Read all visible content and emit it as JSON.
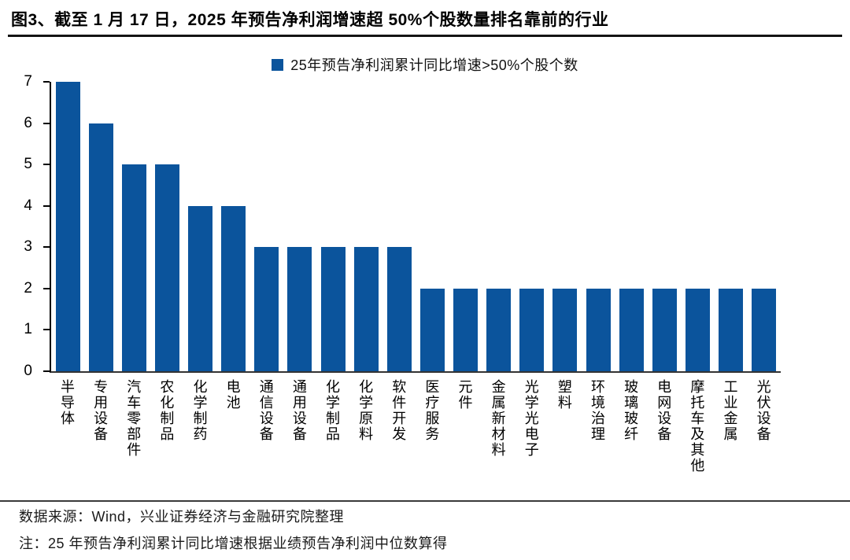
{
  "title": "图3、截至 1 月 17 日，2025 年预告净利润增速超 50%个股数量排名靠前的行业",
  "chart_data": {
    "type": "bar",
    "title": "图3、截至 1 月 17 日，2025 年预告净利润增速超 50%个股数量排名靠前的行业",
    "legend": "25年预告净利润累计同比增速>50%个股个数",
    "legend_position": "top-center",
    "categories": [
      "半导体",
      "专用设备",
      "汽车零部件",
      "农化制品",
      "化学制药",
      "电池",
      "通信设备",
      "通用设备",
      "化学制品",
      "化学原料",
      "软件开发",
      "医疗服务",
      "元件",
      "金属新材料",
      "光学光电子",
      "塑料",
      "环境治理",
      "玻璃玻纤",
      "电网设备",
      "摩托车及其他",
      "工业金属",
      "光伏设备"
    ],
    "values": [
      7,
      6,
      5,
      5,
      4,
      4,
      3,
      3,
      3,
      3,
      3,
      2,
      2,
      2,
      2,
      2,
      2,
      2,
      2,
      2,
      2,
      2
    ],
    "xlabel": "",
    "ylabel": "",
    "ylim": [
      0,
      7
    ],
    "yticks": [
      0,
      1,
      2,
      3,
      4,
      5,
      6,
      7
    ],
    "grid": false,
    "bar_color": "#0B549C",
    "axis_color": "#000000"
  },
  "footer": {
    "source": "数据来源：Wind，兴业证券经济与金融研究院整理",
    "note": "注：25 年预告净利润累计同比增速根据业绩预告净利润中位数算得"
  }
}
